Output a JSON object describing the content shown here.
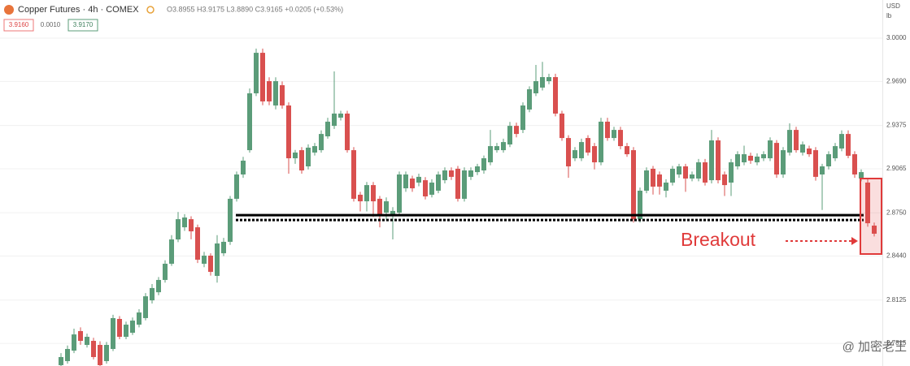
{
  "chart_data": {
    "type": "candlestick",
    "title": "Copper Futures · 4h · COMEX",
    "legend_ohlc": "O3.8955 H3.9175 L3.8890 C3.9165 +0.0205 (+0.53%)",
    "price_boxes": [
      "3.9160",
      "0.0010",
      "3.9170"
    ],
    "axis_unit": [
      "USD",
      "lb"
    ],
    "annotation": "Breakout",
    "watermark": "@ 加密老王",
    "up_color": "#5b9c79",
    "down_color": "#d9504f",
    "ylim": [
      2.7653,
      3.0273
    ],
    "yticks": [
      {
        "value": 3.0,
        "label": "3.0000"
      },
      {
        "value": 2.969,
        "label": "2.9690"
      },
      2.9375,
      2.9065,
      {
        "value": 2.875,
        "label": "2.8750"
      },
      {
        "value": 2.844,
        "label": "2.8440"
      },
      2.8125,
      2.7815
    ],
    "support_levels": [
      2.8733,
      2.8698
    ],
    "series": {
      "open": [
        2.7659,
        2.7688,
        2.7763,
        2.7903,
        2.7804,
        2.7833,
        2.7804,
        2.7688,
        2.7775,
        2.799,
        2.7862,
        2.7891,
        2.7949,
        2.7996,
        2.8123,
        2.8181,
        2.8269,
        2.8385,
        2.8559,
        2.8646,
        2.8704,
        2.8646,
        2.8385,
        2.8443,
        2.8298,
        2.846,
        2.8542,
        2.885,
        2.9024,
        2.9198,
        2.9605,
        2.9895,
        2.9692,
        2.9518,
        2.9663,
        2.9518,
        2.914,
        2.9198,
        2.9082,
        2.9181,
        2.9198,
        2.9297,
        2.9372,
        2.9431,
        2.946,
        2.9198,
        2.8879,
        2.8832,
        2.8948,
        2.885,
        2.8751,
        2.8733,
        2.8751,
        2.8925,
        2.8995,
        2.8966,
        2.8983,
        2.8879,
        2.8908,
        2.8983,
        2.9053,
        2.9065,
        2.885,
        2.9007,
        2.9041,
        2.9053,
        2.9111,
        2.9198,
        2.9198,
        2.9239,
        2.9372,
        2.9343,
        2.9489,
        2.9605,
        2.9646,
        2.9692,
        2.9721,
        2.946,
        2.9285,
        2.914,
        2.914,
        2.9285,
        2.9227,
        2.9111,
        2.9402,
        2.9285,
        2.9343,
        2.9227,
        2.9198,
        2.8704,
        2.8908,
        2.9065,
        2.9024,
        2.8908,
        2.8966,
        2.9024,
        2.9082,
        2.8995,
        2.8995,
        2.9111,
        2.8983,
        2.9268,
        2.9024,
        2.8966,
        2.9082,
        2.9111,
        2.9158,
        2.9111,
        2.914,
        2.914,
        2.925,
        2.9024,
        2.9181,
        2.9343,
        2.9181,
        2.921,
        2.9198,
        2.9024,
        2.9082,
        2.914,
        2.921,
        2.9314,
        2.9169,
        2.8995,
        2.8966,
        2.8658
      ],
      "high": [
        2.7745,
        2.78,
        2.792,
        2.793,
        2.7885,
        2.7855,
        2.783,
        2.7825,
        2.802,
        2.801,
        2.797,
        2.8,
        2.806,
        2.8175,
        2.824,
        2.829,
        2.841,
        2.859,
        2.8755,
        2.874,
        2.8725,
        2.8665,
        2.847,
        2.846,
        2.859,
        2.857,
        2.887,
        2.9045,
        2.915,
        2.964,
        2.9925,
        2.9925,
        2.972,
        2.972,
        2.969,
        2.954,
        2.92,
        2.922,
        2.924,
        2.925,
        2.934,
        2.943,
        2.9762,
        2.948,
        2.948,
        2.922,
        2.89,
        2.897,
        2.897,
        2.887,
        2.886,
        2.879,
        2.9045,
        2.9045,
        2.9015,
        2.903,
        2.9005,
        2.899,
        2.9045,
        2.9075,
        2.9075,
        2.9085,
        2.9075,
        2.9075,
        2.91,
        2.916,
        2.9343,
        2.925,
        2.928,
        2.94,
        2.9395,
        2.954,
        2.9655,
        2.9808,
        2.983,
        2.9745,
        2.9745,
        2.948,
        2.9305,
        2.922,
        2.928,
        2.9305,
        2.925,
        2.943,
        2.943,
        2.9365,
        2.9365,
        2.925,
        2.922,
        2.893,
        2.9075,
        2.9085,
        2.9045,
        2.899,
        2.9085,
        2.91,
        2.91,
        2.9045,
        2.9135,
        2.9135,
        2.9343,
        2.929,
        2.9045,
        2.9135,
        2.919,
        2.923,
        2.918,
        2.9175,
        2.919,
        2.929,
        2.927,
        2.922,
        2.939,
        2.9365,
        2.926,
        2.923,
        2.922,
        2.91,
        2.919,
        2.925,
        2.934,
        2.934,
        2.919,
        2.906,
        2.899,
        2.868
      ],
      "low": [
        2.764,
        2.767,
        2.7745,
        2.7805,
        2.7785,
        2.77,
        2.765,
        2.767,
        2.776,
        2.7845,
        2.7845,
        2.7875,
        2.793,
        2.798,
        2.81,
        2.816,
        2.825,
        2.837,
        2.854,
        2.862,
        2.856,
        2.839,
        2.836,
        2.83,
        2.825,
        2.844,
        2.852,
        2.883,
        2.9,
        2.918,
        2.9585,
        2.952,
        2.952,
        2.949,
        2.9495,
        2.903,
        2.91,
        2.903,
        2.906,
        2.916,
        2.918,
        2.928,
        2.935,
        2.941,
        2.918,
        2.883,
        2.876,
        2.876,
        2.872,
        2.8646,
        2.87,
        2.8559,
        2.873,
        2.89,
        2.89,
        2.894,
        2.8845,
        2.886,
        2.889,
        2.896,
        2.8985,
        2.883,
        2.883,
        2.8985,
        2.902,
        2.903,
        2.909,
        2.918,
        2.918,
        2.922,
        2.929,
        2.932,
        2.947,
        2.9585,
        2.9625,
        2.967,
        2.944,
        2.9265,
        2.9,
        2.912,
        2.912,
        2.916,
        2.906,
        2.909,
        2.9265,
        2.9265,
        2.9205,
        2.915,
        2.868,
        2.868,
        2.889,
        2.888,
        2.888,
        2.886,
        2.8945,
        2.9,
        2.89,
        2.8975,
        2.8975,
        2.8945,
        2.896,
        2.896,
        2.887,
        2.887,
        2.906,
        2.909,
        2.91,
        2.909,
        2.912,
        2.912,
        2.9,
        2.9,
        2.916,
        2.918,
        2.916,
        2.915,
        2.898,
        2.877,
        2.906,
        2.912,
        2.919,
        2.914,
        2.9,
        2.8975,
        2.865,
        2.858
      ],
      "close": [
        2.7717,
        2.7775,
        2.7879,
        2.7833,
        2.7862,
        2.7717,
        2.7659,
        2.7804,
        2.7996,
        2.7862,
        2.7949,
        2.7978,
        2.8036,
        2.8152,
        2.8211,
        2.8269,
        2.8385,
        2.8559,
        2.8704,
        2.8716,
        2.8617,
        2.8414,
        2.8443,
        2.8327,
        2.853,
        2.8542,
        2.885,
        2.9024,
        2.9123,
        2.9605,
        2.9895,
        2.9547,
        2.9547,
        2.9692,
        2.9518,
        2.914,
        2.9181,
        2.9053,
        2.9216,
        2.9227,
        2.9314,
        2.9402,
        2.946,
        2.946,
        2.9198,
        2.885,
        2.8832,
        2.8948,
        2.8832,
        2.8733,
        2.8832,
        2.8763,
        2.9024,
        2.9024,
        2.8925,
        2.9007,
        2.8867,
        2.8966,
        2.9024,
        2.9053,
        2.9007,
        2.885,
        2.9053,
        2.9053,
        2.9082,
        2.914,
        2.9227,
        2.9227,
        2.9256,
        2.9372,
        2.9314,
        2.9518,
        2.9634,
        2.9692,
        2.9721,
        2.9721,
        2.946,
        2.9285,
        2.9082,
        2.9198,
        2.9256,
        2.9181,
        2.9111,
        2.9402,
        2.9285,
        2.9343,
        2.9227,
        2.9169,
        2.8704,
        2.8908,
        2.9053,
        2.8937,
        2.8937,
        2.8966,
        2.9065,
        2.9082,
        2.8995,
        2.9024,
        2.9111,
        2.8966,
        2.9268,
        2.8983,
        2.8948,
        2.9111,
        2.9169,
        2.9169,
        2.9123,
        2.9152,
        2.9169,
        2.9268,
        2.9024,
        2.9198,
        2.9343,
        2.9198,
        2.9239,
        2.9169,
        2.9007,
        2.9082,
        2.9169,
        2.9227,
        2.9314,
        2.9158,
        2.9024,
        2.9041,
        2.8675,
        2.86
      ]
    }
  }
}
